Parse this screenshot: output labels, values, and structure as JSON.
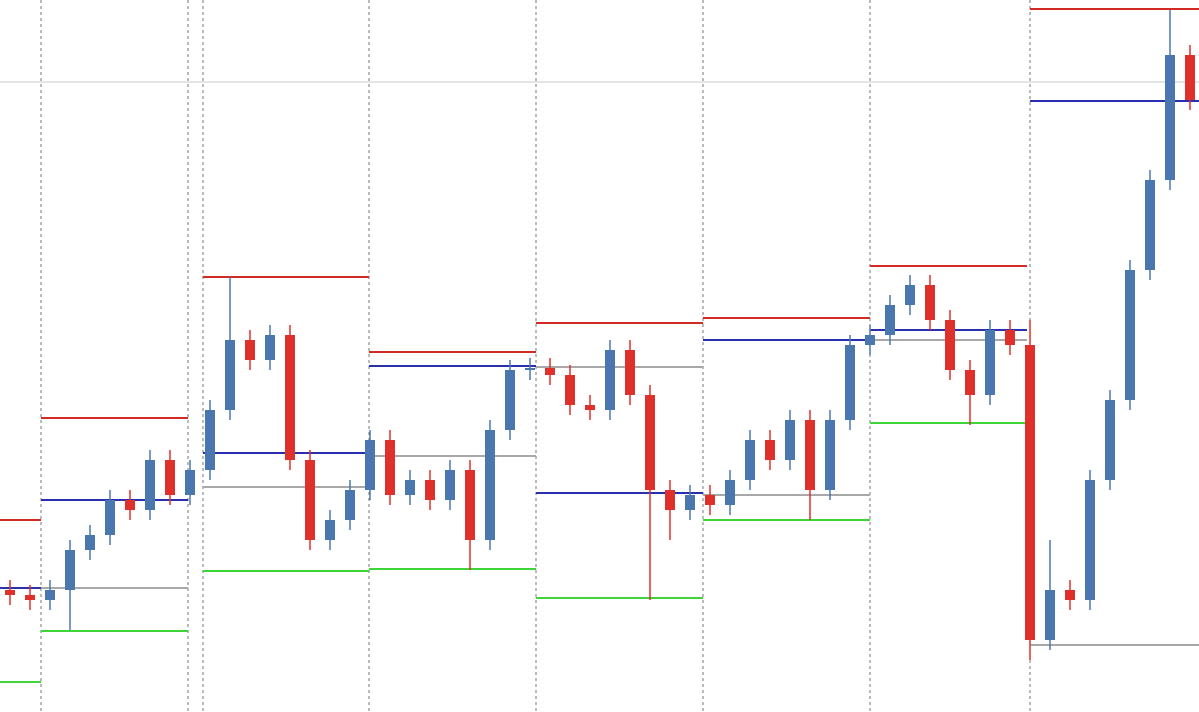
{
  "chart_data": {
    "type": "candlestick",
    "xlim": [
      -0.5,
      59.45
    ],
    "ylim": [
      0,
      712
    ],
    "up_color": "#4a78ae",
    "down_color": "#e0302c",
    "open": [
      122,
      117,
      112,
      122,
      162,
      177,
      212,
      202,
      252,
      217,
      242,
      302,
      372,
      352,
      377,
      252,
      172,
      192,
      222,
      272,
      217,
      232,
      212,
      242,
      172,
      282,
      342,
      344,
      337,
      307,
      302,
      362,
      317,
      222,
      202,
      217,
      207,
      232,
      272,
      252,
      292,
      222,
      292,
      367,
      377,
      407,
      427,
      392,
      342,
      317,
      382,
      367,
      72,
      122,
      112,
      232,
      312,
      442,
      532,
      657
    ],
    "high": [
      132,
      127,
      132,
      172,
      187,
      222,
      222,
      262,
      262,
      252,
      312,
      435,
      382,
      387,
      387,
      262,
      202,
      232,
      282,
      282,
      242,
      242,
      252,
      252,
      292,
      352,
      354,
      354,
      347,
      317,
      372,
      372,
      327,
      232,
      227,
      227,
      242,
      282,
      282,
      302,
      302,
      302,
      377,
      387,
      417,
      437,
      437,
      402,
      352,
      392,
      392,
      392,
      172,
      132,
      242,
      322,
      452,
      542,
      702,
      667
    ],
    "low": [
      107,
      102,
      102,
      82,
      152,
      167,
      192,
      192,
      207,
      207,
      232,
      292,
      342,
      342,
      242,
      162,
      162,
      182,
      212,
      207,
      207,
      202,
      202,
      142,
      162,
      272,
      332,
      327,
      297,
      292,
      292,
      307,
      112,
      172,
      192,
      197,
      197,
      222,
      242,
      242,
      192,
      212,
      282,
      357,
      367,
      397,
      382,
      332,
      287,
      307,
      357,
      52,
      62,
      102,
      102,
      222,
      302,
      432,
      522,
      602
    ],
    "close": [
      117,
      112,
      122,
      162,
      177,
      212,
      202,
      252,
      217,
      242,
      302,
      372,
      352,
      377,
      252,
      172,
      192,
      222,
      272,
      217,
      232,
      212,
      242,
      172,
      282,
      342,
      344,
      337,
      307,
      302,
      362,
      317,
      222,
      202,
      217,
      207,
      232,
      272,
      252,
      292,
      222,
      292,
      367,
      377,
      407,
      427,
      392,
      342,
      317,
      382,
      367,
      72,
      122,
      112,
      232,
      312,
      442,
      532,
      657,
      612
    ],
    "periods": [
      [
        -0.5,
        1.55
      ],
      [
        1.55,
        8.9
      ],
      [
        9.65,
        17.95
      ],
      [
        17.95,
        26.3
      ],
      [
        26.3,
        34.65
      ],
      [
        34.65,
        43
      ],
      [
        43,
        50.85
      ],
      [
        51,
        59.45
      ]
    ],
    "level_series": [
      {
        "color": "#d42a24",
        "values": [
          192,
          294,
          435,
          360,
          389,
          394,
          446,
          703
        ]
      },
      {
        "color": "#2a2fae",
        "values": [
          124,
          212,
          259,
          346,
          219,
          372,
          382,
          611
        ]
      },
      {
        "color": "#a8a8a8",
        "values": [
          null,
          124,
          225,
          256,
          345,
          217,
          372,
          67
        ]
      },
      {
        "color": "#3ed43a",
        "values": [
          30,
          81,
          141,
          143,
          114,
          192,
          289,
          null
        ]
      }
    ],
    "separators": [
      1.55,
      8.9,
      9.65,
      17.95,
      26.3,
      34.65,
      43,
      51
    ],
    "price_line": 630
  }
}
